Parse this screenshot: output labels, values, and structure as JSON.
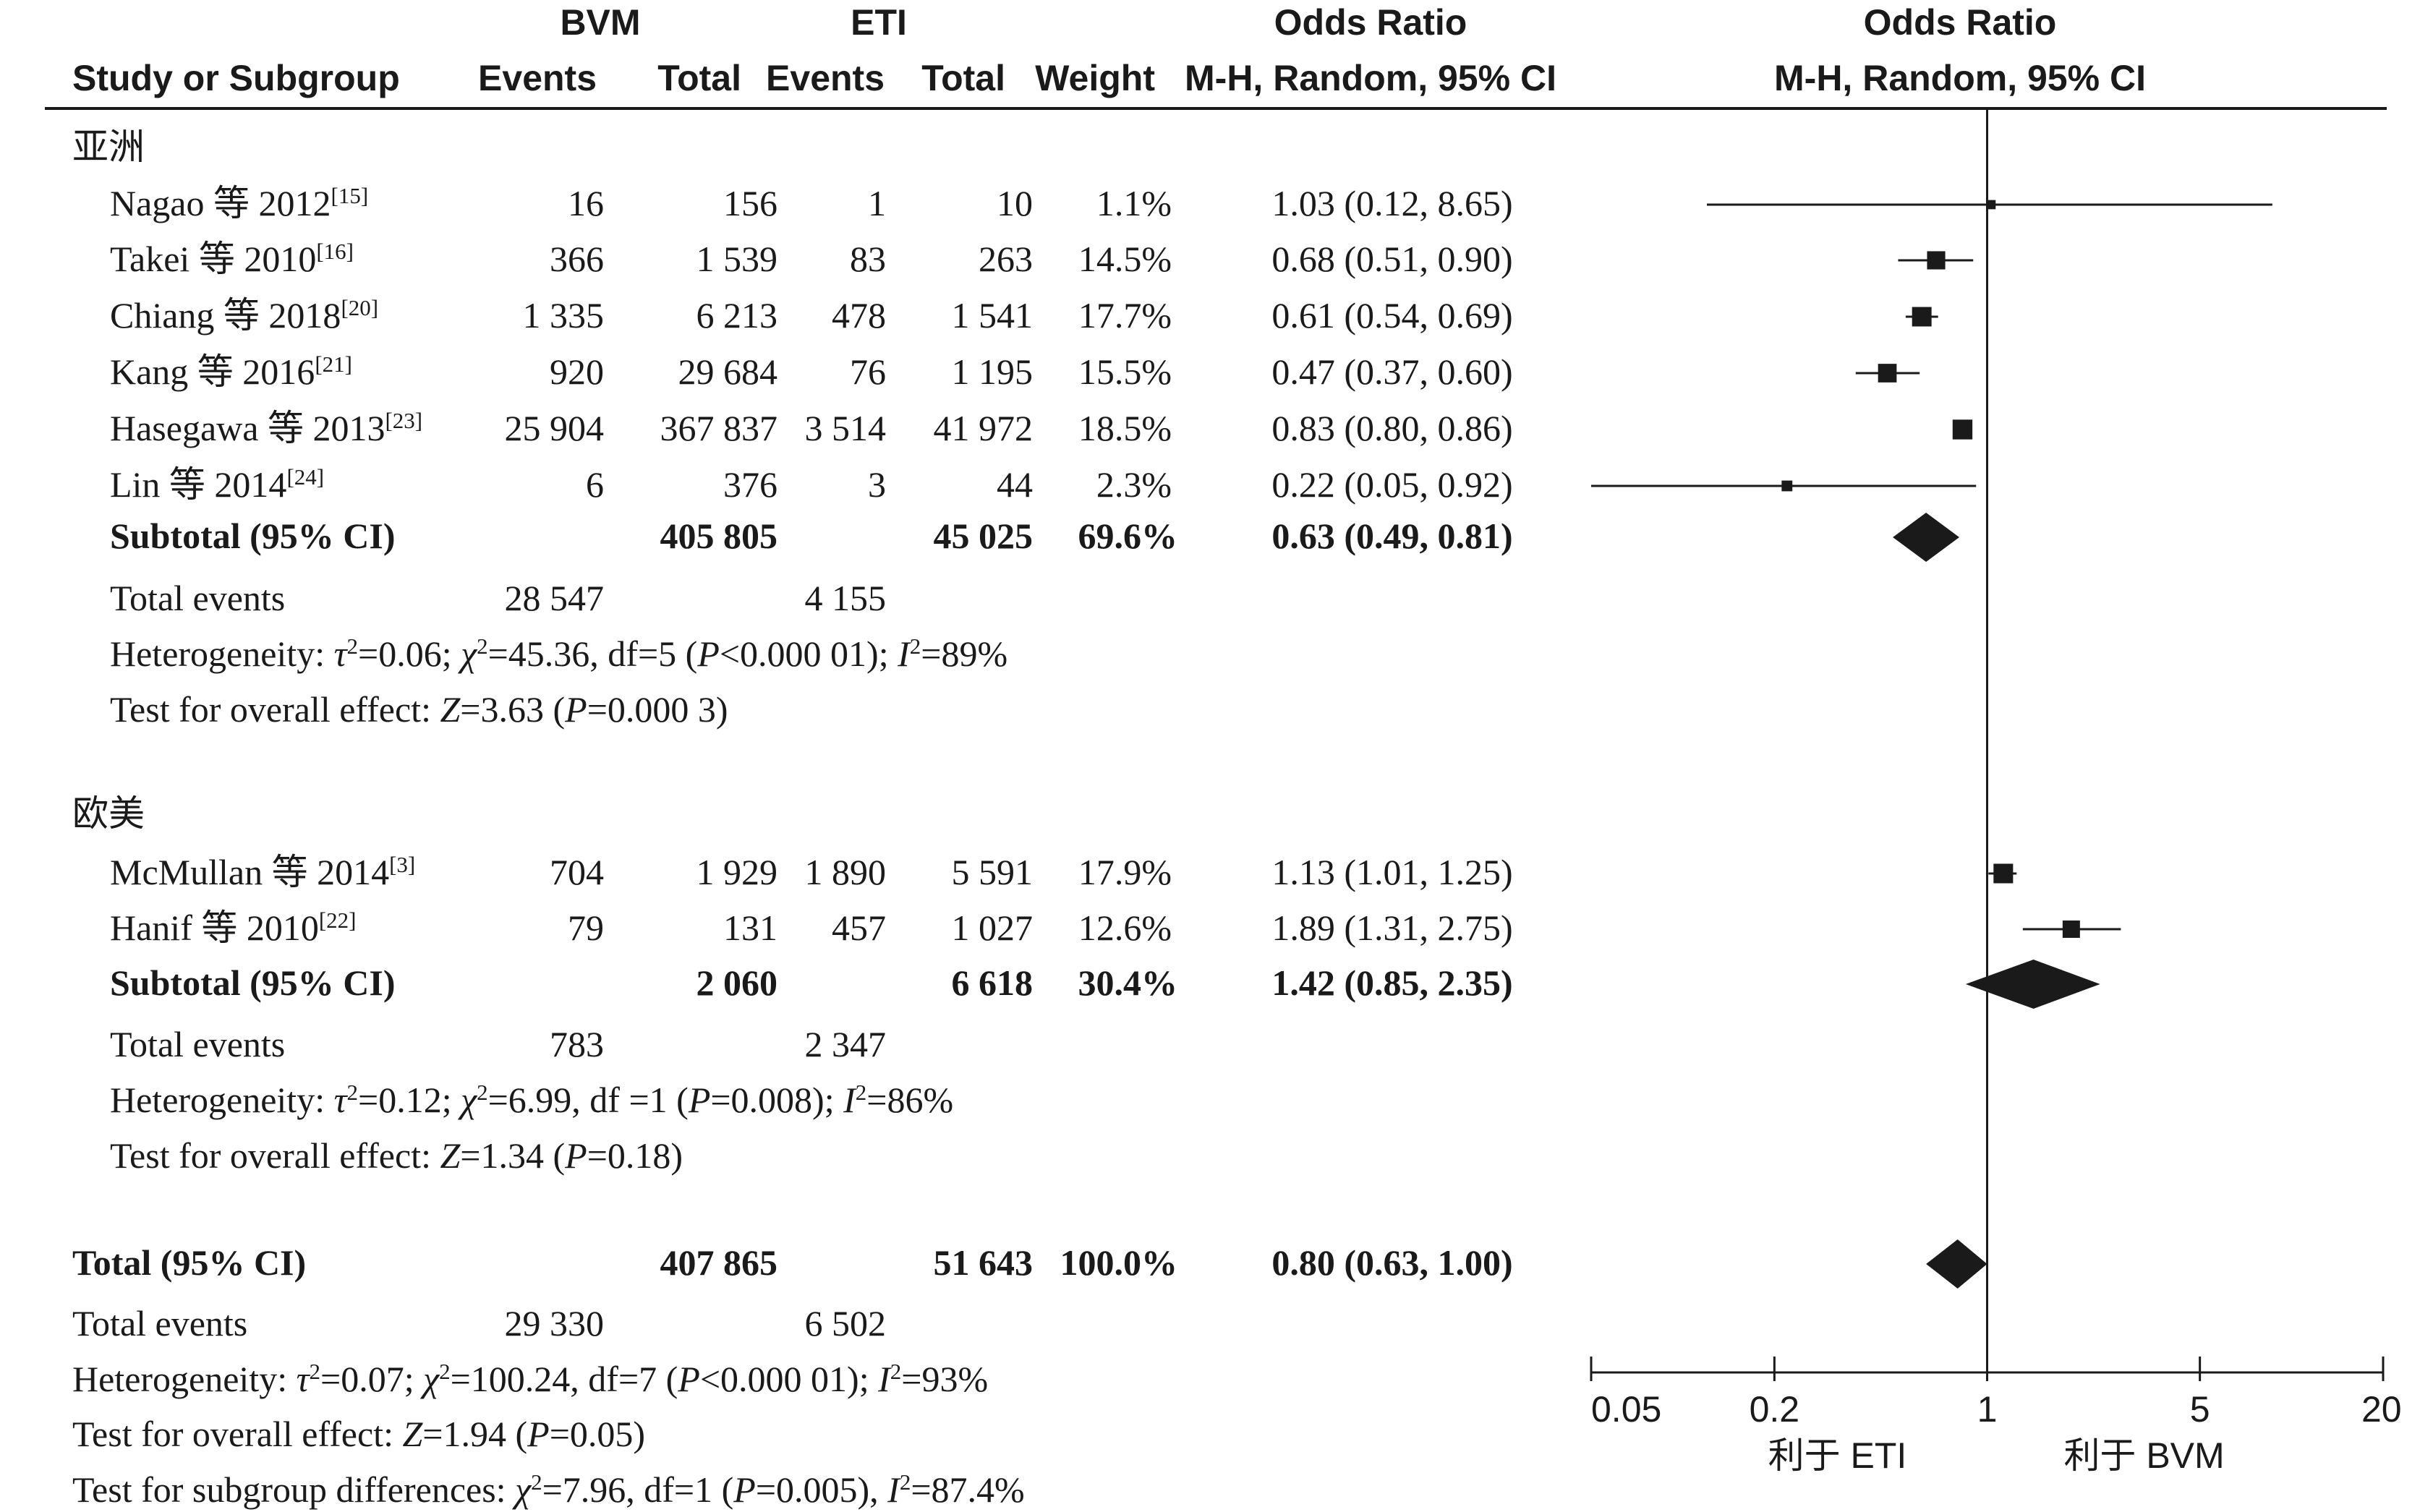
{
  "header": {
    "group1": "BVM",
    "group2": "ETI",
    "or_title": "Odds Ratio",
    "plot_title": "Odds Ratio",
    "study_col": "Study or Subgroup",
    "events1": "Events",
    "total1": "Total",
    "events2": "Events",
    "total2": "Total",
    "weight": "Weight",
    "method": "M-H, Random, 95% CI",
    "plot_method": "M-H, Random, 95% CI"
  },
  "subgroups": [
    {
      "name": "亚洲",
      "studies": [
        {
          "study": "Nagao 等 2012",
          "ref": "[15]",
          "e1": "16",
          "t1": "156",
          "e2": "1",
          "t2": "10",
          "weight": "1.1%",
          "ci": "1.03 (0.12, 8.65)",
          "or": 1.03,
          "lo": 0.12,
          "hi": 8.65,
          "w": 1.1
        },
        {
          "study": "Takei 等 2010",
          "ref": "[16]",
          "e1": "366",
          "t1": "1 539",
          "e2": "83",
          "t2": "263",
          "weight": "14.5%",
          "ci": "0.68 (0.51, 0.90)",
          "or": 0.68,
          "lo": 0.51,
          "hi": 0.9,
          "w": 14.5
        },
        {
          "study": "Chiang 等 2018",
          "ref": "[20]",
          "e1": "1 335",
          "t1": "6 213",
          "e2": "478",
          "t2": "1 541",
          "weight": "17.7%",
          "ci": "0.61 (0.54, 0.69)",
          "or": 0.61,
          "lo": 0.54,
          "hi": 0.69,
          "w": 17.7
        },
        {
          "study": "Kang 等 2016",
          "ref": "[21]",
          "e1": "920",
          "t1": "29 684",
          "e2": "76",
          "t2": "1 195",
          "weight": "15.5%",
          "ci": "0.47 (0.37, 0.60)",
          "or": 0.47,
          "lo": 0.37,
          "hi": 0.6,
          "w": 15.5
        },
        {
          "study": "Hasegawa 等 2013",
          "ref": "[23]",
          "e1": "25 904",
          "t1": "367 837",
          "e2": "3 514",
          "t2": "41 972",
          "weight": "18.5%",
          "ci": "0.83 (0.80, 0.86)",
          "or": 0.83,
          "lo": 0.8,
          "hi": 0.86,
          "w": 18.5
        },
        {
          "study": "Lin 等 2014",
          "ref": "[24]",
          "e1": "6",
          "t1": "376",
          "e2": "3",
          "t2": "44",
          "weight": "2.3%",
          "ci": "0.22 (0.05, 0.92)",
          "or": 0.22,
          "lo": 0.05,
          "hi": 0.92,
          "w": 2.3
        }
      ],
      "subtotal": {
        "label": "Subtotal (95% CI)",
        "t1": "405 805",
        "t2": "45 025",
        "weight": "69.6%",
        "ci": "0.63 (0.49, 0.81)",
        "or": 0.63,
        "lo": 0.49,
        "hi": 0.81
      },
      "events": {
        "label": "Total events",
        "e1": "28 547",
        "e2": "4 155"
      },
      "heterogeneity": {
        "prefix": "Heterogeneity: ",
        "tau": "τ",
        "tau_val": "=0.06; ",
        "chi": "χ",
        "chi_val": "=45.36, df=5 (",
        "p": "P",
        "p_val": "<0.000 01); ",
        "i": "I",
        "i_val": "=89%"
      },
      "overall": {
        "prefix": "Test for overall effect: ",
        "z": "Z",
        "z_val": "=3.63 (",
        "p": "P",
        "p_val": "=0.000 3)"
      }
    },
    {
      "name": "欧美",
      "studies": [
        {
          "study": "McMullan 等 2014",
          "ref": "[3]",
          "e1": "704",
          "t1": "1 929",
          "e2": "1 890",
          "t2": "5 591",
          "weight": "17.9%",
          "ci": "1.13 (1.01, 1.25)",
          "or": 1.13,
          "lo": 1.01,
          "hi": 1.25,
          "w": 17.9
        },
        {
          "study": "Hanif 等 2010",
          "ref": "[22]",
          "e1": "79",
          "t1": "131",
          "e2": "457",
          "t2": "1 027",
          "weight": "12.6%",
          "ci": "1.89 (1.31, 2.75)",
          "or": 1.89,
          "lo": 1.31,
          "hi": 2.75,
          "w": 12.6
        }
      ],
      "subtotal": {
        "label": "Subtotal (95% CI)",
        "t1": "2 060",
        "t2": "6 618",
        "weight": "30.4%",
        "ci": "1.42 (0.85, 2.35)",
        "or": 1.42,
        "lo": 0.85,
        "hi": 2.35
      },
      "events": {
        "label": "Total events",
        "e1": "783",
        "e2": "2 347"
      },
      "heterogeneity": {
        "prefix": "Heterogeneity: ",
        "tau": "τ",
        "tau_val": "=0.12; ",
        "chi": "χ",
        "chi_val": "=6.99, df =1 (",
        "p": "P",
        "p_val": "=0.008); ",
        "i": "I",
        "i_val": "=86%"
      },
      "overall": {
        "prefix": "Test for overall effect: ",
        "z": "Z",
        "z_val": "=1.34 (",
        "p": "P",
        "p_val": "=0.18)"
      }
    }
  ],
  "total": {
    "label": "Total (95% CI)",
    "t1": "407 865",
    "t2": "51 643",
    "weight": "100.0%",
    "ci": "0.80 (0.63, 1.00)",
    "or": 0.8,
    "lo": 0.63,
    "hi": 1.0,
    "events": {
      "label": "Total events",
      "e1": "29 330",
      "e2": "6 502"
    },
    "heterogeneity": {
      "prefix": "Heterogeneity: ",
      "tau": "τ",
      "tau_val": "=0.07; ",
      "chi": "χ",
      "chi_val": "=100.24, df=7 (",
      "p": "P",
      "p_val": "<0.000 01); ",
      "i": "I",
      "i_val": "=93%"
    },
    "overall": {
      "prefix": "Test for overall effect: ",
      "z": "Z",
      "z_val": "=1.94 (",
      "p": "P",
      "p_val": "=0.05)"
    },
    "subgroup_diff": {
      "prefix": "Test for subgroup differences: ",
      "chi": "χ",
      "chi_val": "=7.96, df=1 (",
      "p": "P",
      "p_val": "=0.005), ",
      "i": "I",
      "i_val": "=87.4%"
    }
  },
  "axis": {
    "ticks": [
      {
        "label": "0.05",
        "value": 0.05
      },
      {
        "label": "0.2",
        "value": 0.2
      },
      {
        "label": "1",
        "value": 1
      },
      {
        "label": "5",
        "value": 5
      },
      {
        "label": "20",
        "value": 20
      }
    ],
    "favours_left": "利于 ETI",
    "favours_right": "利于 BVM",
    "scale": "log",
    "xlim": [
      0.05,
      20
    ]
  },
  "chart_data": {
    "type": "forest",
    "scale": "log",
    "xlim": [
      0.05,
      20
    ],
    "reference_line": 1,
    "points": [
      {
        "label": "Nagao 等 2012",
        "or": 1.03,
        "lo": 0.12,
        "hi": 8.65,
        "weight": 1.1
      },
      {
        "label": "Takei 等 2010",
        "or": 0.68,
        "lo": 0.51,
        "hi": 0.9,
        "weight": 14.5
      },
      {
        "label": "Chiang 等 2018",
        "or": 0.61,
        "lo": 0.54,
        "hi": 0.69,
        "weight": 17.7
      },
      {
        "label": "Kang 等 2016",
        "or": 0.47,
        "lo": 0.37,
        "hi": 0.6,
        "weight": 15.5
      },
      {
        "label": "Hasegawa 等 2013",
        "or": 0.83,
        "lo": 0.8,
        "hi": 0.86,
        "weight": 18.5
      },
      {
        "label": "Lin 等 2014",
        "or": 0.22,
        "lo": 0.05,
        "hi": 0.92,
        "weight": 2.3
      },
      {
        "label": "Subtotal (95% CI)",
        "or": 0.63,
        "lo": 0.49,
        "hi": 0.81,
        "weight": 69.6
      },
      {
        "label": "McMullan 等 2014",
        "or": 1.13,
        "lo": 1.01,
        "hi": 1.25,
        "weight": 17.9
      },
      {
        "label": "Hanif 等 2010",
        "or": 1.89,
        "lo": 1.31,
        "hi": 2.75,
        "weight": 12.6
      },
      {
        "label": "Subtotal (95% CI)",
        "or": 1.42,
        "lo": 0.85,
        "hi": 2.35,
        "weight": 30.4
      },
      {
        "label": "Total (95% CI)",
        "or": 0.8,
        "lo": 0.63,
        "hi": 1.0,
        "weight": 100.0
      }
    ]
  }
}
